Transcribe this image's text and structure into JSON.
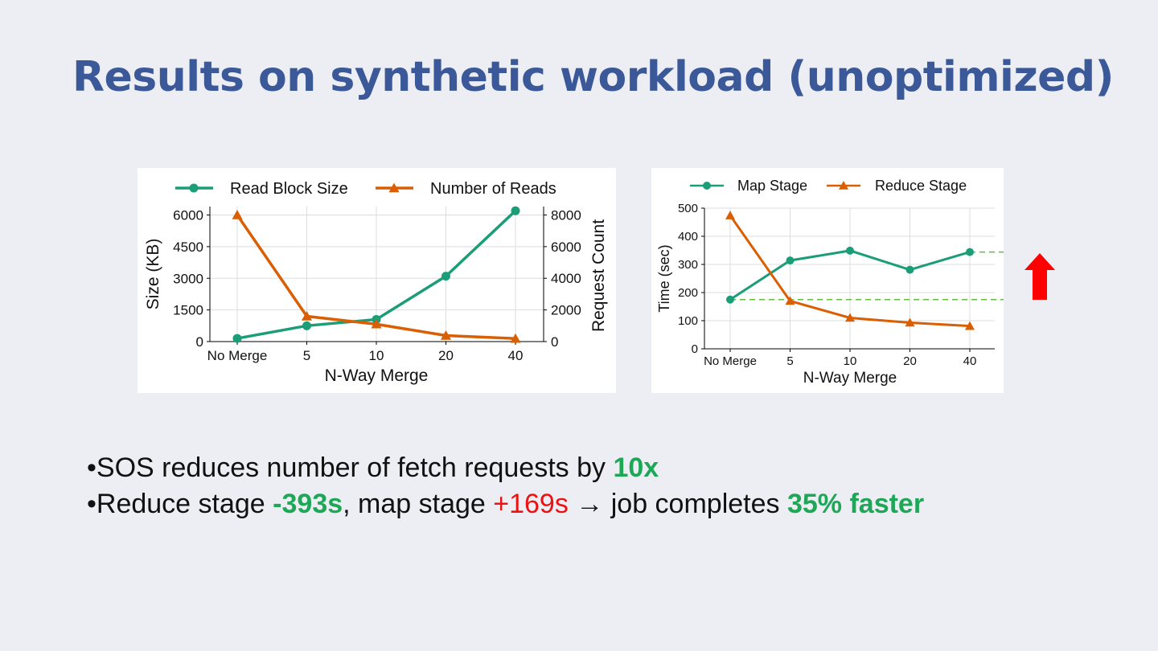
{
  "slide": {
    "title": "Results on synthetic workload (unoptimized)"
  },
  "colors": {
    "title": "#3b5998",
    "series_green": "#1b9e77",
    "series_orange": "#d95f02",
    "highlight_green": "#1fa758",
    "highlight_red": "#ee1111",
    "arrow_red": "#ff0000",
    "dashed_line": "#66bb44",
    "background": "#eceef3"
  },
  "bullets": [
    {
      "prefix": "•SOS reduces number of fetch requests by ",
      "value": "10x"
    },
    {
      "prefix": "•Reduce stage ",
      "reduce": "-393s",
      "mid1": ", map stage ",
      "map": "+169s",
      "mid2": " → job completes ",
      "result": "35% faster"
    }
  ],
  "annotation": {
    "arrow_icon": "red-up-arrow-icon",
    "dashed_levels_sec": [
      175,
      344
    ]
  },
  "chart_data": [
    {
      "type": "line",
      "categories": [
        "No Merge",
        "5",
        "10",
        "20",
        "40"
      ],
      "xlabel": "N-Way Merge",
      "ylabel": "Size (KB)",
      "ylabel_right": "Request Count",
      "ylim": [
        0,
        6400
      ],
      "yticks": [
        0,
        1500,
        3000,
        4500,
        6000
      ],
      "ylim_right": [
        0,
        8533
      ],
      "yticks_right": [
        0,
        2000,
        4000,
        6000,
        8000
      ],
      "grid": true,
      "legend": "top",
      "series": [
        {
          "name": "Read Block Size",
          "axis": "left",
          "marker": "circle",
          "color": "#1b9e77",
          "values": [
            150,
            750,
            1050,
            3100,
            6200
          ]
        },
        {
          "name": "Number of Reads",
          "axis": "right",
          "marker": "triangle",
          "color": "#d95f02",
          "values": [
            8000,
            1600,
            1100,
            380,
            190
          ]
        }
      ]
    },
    {
      "type": "line",
      "categories": [
        "No Merge",
        "5",
        "10",
        "20",
        "40"
      ],
      "xlabel": "N-Way Merge",
      "ylabel": "Time (sec)",
      "ylim": [
        0,
        500
      ],
      "yticks": [
        0,
        100,
        200,
        300,
        400,
        500
      ],
      "grid": true,
      "legend": "top",
      "series": [
        {
          "name": "Map Stage",
          "marker": "circle",
          "color": "#1b9e77",
          "values": [
            175,
            314,
            349,
            281,
            344
          ]
        },
        {
          "name": "Reduce Stage",
          "marker": "triangle",
          "color": "#d95f02",
          "values": [
            474,
            170,
            110,
            93,
            81
          ]
        }
      ]
    }
  ]
}
